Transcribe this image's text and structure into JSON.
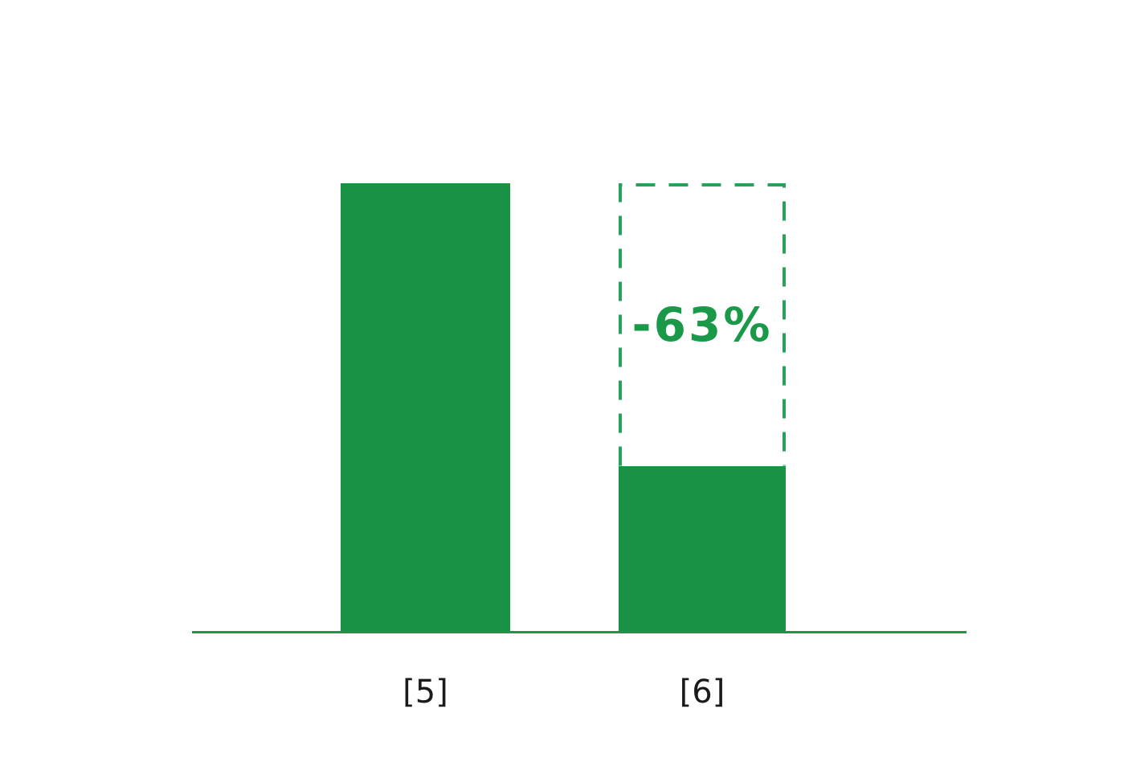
{
  "chart_data": {
    "type": "bar",
    "categories": [
      "[5]",
      "[6]"
    ],
    "values": [
      100,
      37
    ],
    "ylim": [
      0,
      100
    ],
    "title": "",
    "xlabel": "",
    "ylabel": "",
    "grid": false,
    "legend": false,
    "annotations": [
      {
        "text": "-63%",
        "attached_to": "[6]",
        "position": "inside-dashed-outline"
      }
    ],
    "reference_outline": {
      "category": "[6]",
      "height": 100,
      "style": "dashed"
    }
  },
  "colors": {
    "bar_fill": "#1a9246",
    "dashed_outline": "#2aa05c",
    "annotation_text": "#1a9a48",
    "axis_line": "#1f9549",
    "category_label": "#1b1b1b",
    "background": "#ffffff"
  }
}
